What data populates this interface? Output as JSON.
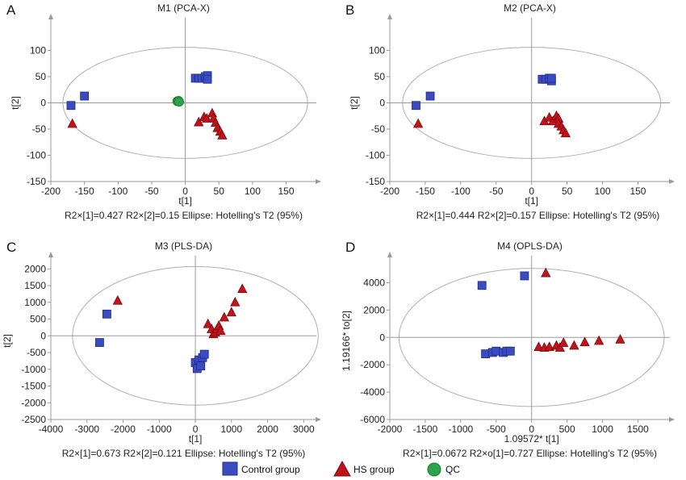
{
  "colors": {
    "control": "#3b4cc0",
    "control_edge": "#1f2a8a",
    "hs": "#c0141b",
    "hs_edge": "#7a0a0e",
    "qc": "#2ca44a",
    "axis": "#9a9a9a",
    "ellipse": "#b0b0b0"
  },
  "chart_data": [
    {
      "panel_label": "A",
      "type": "scatter",
      "title": "M1 (PCA-X)",
      "xlabel": "t[1]",
      "ylabel": "t[2]",
      "xlim": [
        -200,
        195
      ],
      "ylim": [
        -150,
        150
      ],
      "xticks": [
        "-200",
        "-150",
        "-100",
        "-50",
        "0",
        "50",
        "100",
        "150"
      ],
      "yticks": [
        "-150",
        "-100",
        "-50",
        "0",
        "50",
        "100"
      ],
      "xtick_values": [
        -200,
        -150,
        -100,
        -50,
        0,
        50,
        100,
        150
      ],
      "ytick_values": [
        -150,
        -100,
        -50,
        0,
        50,
        100
      ],
      "ellipse": {
        "rx": 182,
        "ry": 106
      },
      "footer": "R2×[1]=0.427    R2×[2]=0.15    Ellipse: Hotelling's T2 (95%)",
      "series": [
        {
          "group": "control",
          "marker": "square",
          "points": [
            [
              -170,
              -5
            ],
            [
              -150,
              13
            ],
            [
              15,
              47
            ],
            [
              20,
              47
            ],
            [
              25,
              47
            ],
            [
              30,
              50
            ],
            [
              33,
              52
            ],
            [
              33,
              45
            ]
          ]
        },
        {
          "group": "hs",
          "marker": "triangle",
          "points": [
            [
              -168,
              -40
            ],
            [
              20,
              -37
            ],
            [
              28,
              -27
            ],
            [
              32,
              -30
            ],
            [
              40,
              -20
            ],
            [
              42,
              -30
            ],
            [
              45,
              -38
            ],
            [
              48,
              -48
            ],
            [
              52,
              -55
            ],
            [
              55,
              -62
            ]
          ]
        },
        {
          "group": "qc",
          "marker": "circle",
          "points": [
            [
              -12,
              3
            ],
            [
              -10,
              4
            ],
            [
              -9,
              2
            ]
          ]
        }
      ]
    },
    {
      "panel_label": "B",
      "type": "scatter",
      "title": "M2 (PCA-X)",
      "xlabel": "t[1]",
      "ylabel": "t[2]",
      "xlim": [
        -200,
        195
      ],
      "ylim": [
        -150,
        150
      ],
      "xticks": [
        "-200",
        "-150",
        "-100",
        "-50",
        "0",
        "50",
        "100",
        "150"
      ],
      "yticks": [
        "-150",
        "-100",
        "-50",
        "0",
        "50",
        "100"
      ],
      "xtick_values": [
        -200,
        -150,
        -100,
        -50,
        0,
        50,
        100,
        150
      ],
      "ytick_values": [
        -150,
        -100,
        -50,
        0,
        50,
        100
      ],
      "ellipse": {
        "rx": 182,
        "ry": 106
      },
      "footer": "R2×[1]=0.444  R2×[2]=0.157   Ellipse: Hotelling's T2 (95%)",
      "series": [
        {
          "group": "control",
          "marker": "square",
          "points": [
            [
              -163,
              -5
            ],
            [
              -143,
              13
            ],
            [
              15,
              45
            ],
            [
              20,
              45
            ],
            [
              25,
              47
            ],
            [
              28,
              42
            ],
            [
              28,
              47
            ]
          ]
        },
        {
          "group": "hs",
          "marker": "triangle",
          "points": [
            [
              -160,
              -40
            ],
            [
              18,
              -35
            ],
            [
              25,
              -28
            ],
            [
              30,
              -35
            ],
            [
              35,
              -25
            ],
            [
              38,
              -30
            ],
            [
              38,
              -40
            ],
            [
              42,
              -45
            ],
            [
              45,
              -52
            ],
            [
              48,
              -58
            ]
          ]
        }
      ]
    },
    {
      "panel_label": "C",
      "type": "scatter",
      "title": "M3 (PLS-DA)",
      "xlabel": "t[1]",
      "ylabel": "t[2]",
      "xlim": [
        -4000,
        3350
      ],
      "ylim": [
        -2500,
        2200
      ],
      "xticks": [
        "-4000",
        "-3000",
        "-2000",
        "-1000",
        "0",
        "1000",
        "2000",
        "3000"
      ],
      "yticks": [
        "-2500",
        "-2000",
        "-1500",
        "-1000",
        "-500",
        "0",
        "500",
        "1000",
        "1500",
        "2000"
      ],
      "xtick_values": [
        -4000,
        -3000,
        -2000,
        -1000,
        0,
        1000,
        2000,
        3000
      ],
      "ytick_values": [
        -2500,
        -2000,
        -1500,
        -1000,
        -500,
        0,
        500,
        1000,
        1500,
        2000
      ],
      "ellipse": {
        "rx": 3400,
        "ry": 2070
      },
      "footer": "R2×[1]=0.673   R2×[2]=0.121  Ellipse: Hotelling's T2 (95%)",
      "series": [
        {
          "group": "control",
          "marker": "square",
          "points": [
            [
              -2650,
              -200
            ],
            [
              -2450,
              650
            ],
            [
              0,
              -800
            ],
            [
              50,
              -980
            ],
            [
              100,
              -720
            ],
            [
              150,
              -900
            ],
            [
              200,
              -650
            ],
            [
              250,
              -550
            ]
          ]
        },
        {
          "group": "hs",
          "marker": "triangle",
          "points": [
            [
              -2150,
              1050
            ],
            [
              350,
              350
            ],
            [
              450,
              200
            ],
            [
              500,
              50
            ],
            [
              550,
              100
            ],
            [
              600,
              200
            ],
            [
              650,
              300
            ],
            [
              700,
              150
            ],
            [
              800,
              550
            ],
            [
              1000,
              700
            ],
            [
              1100,
              1000
            ],
            [
              1300,
              1400
            ]
          ]
        }
      ]
    },
    {
      "panel_label": "D",
      "type": "scatter",
      "title": "M4 (OPLS-DA)",
      "xlabel": "1.09572* t[1]",
      "ylabel": "1.19166* to[2]",
      "xlim": [
        -2000,
        1950
      ],
      "ylim": [
        -6000,
        5500
      ],
      "xticks": [
        "-2000",
        "-1500",
        "-1000",
        "-500",
        "0",
        "500",
        "1000",
        "1500"
      ],
      "yticks": [
        "-6000",
        "-4000",
        "-2000",
        "0",
        "2000",
        "4000"
      ],
      "xtick_values": [
        -2000,
        -1500,
        -1000,
        -500,
        0,
        500,
        1000,
        1500
      ],
      "ytick_values": [
        -6000,
        -4000,
        -2000,
        0,
        2000,
        4000
      ],
      "ellipse": {
        "rx": 1870,
        "ry": 5050
      },
      "footer": "R2×[1]=0.0672  R2×o[1]=0.727    Ellipse: Hotelling's T2 (95%)",
      "series": [
        {
          "group": "control",
          "marker": "square",
          "points": [
            [
              -700,
              3800
            ],
            [
              -100,
              4500
            ],
            [
              -650,
              -1200
            ],
            [
              -550,
              -1100
            ],
            [
              -500,
              -1000
            ],
            [
              -400,
              -1100
            ],
            [
              -350,
              -1000
            ],
            [
              -300,
              -1000
            ]
          ]
        },
        {
          "group": "hs",
          "marker": "triangle",
          "points": [
            [
              200,
              4700
            ],
            [
              100,
              -700
            ],
            [
              180,
              -750
            ],
            [
              250,
              -700
            ],
            [
              350,
              -600
            ],
            [
              400,
              -750
            ],
            [
              450,
              -400
            ],
            [
              600,
              -600
            ],
            [
              750,
              -350
            ],
            [
              950,
              -250
            ],
            [
              1250,
              -150
            ]
          ]
        }
      ]
    }
  ],
  "legend": {
    "items": [
      {
        "group": "control",
        "marker": "square",
        "label": "Control group"
      },
      {
        "group": "hs",
        "marker": "triangle",
        "label": "HS group"
      },
      {
        "group": "qc",
        "marker": "circle",
        "label": "QC"
      }
    ]
  }
}
